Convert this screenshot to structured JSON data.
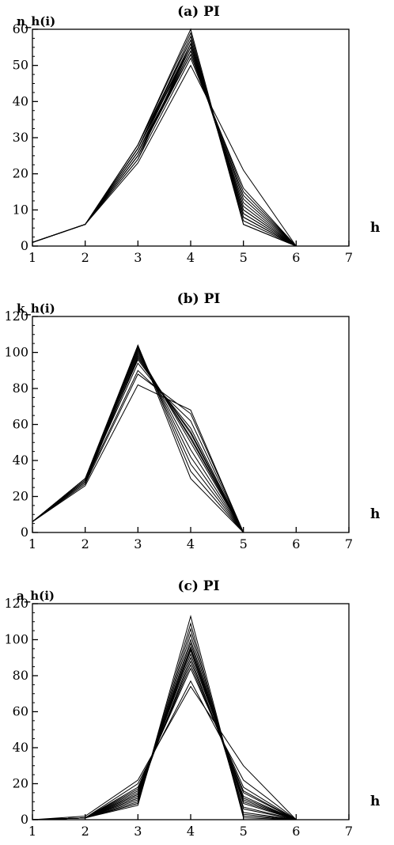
{
  "chart_data": [
    {
      "type": "line",
      "title": "(a)    PI",
      "ylabel": "n_h(i)",
      "xlabel": "h",
      "xlim": [
        1,
        7
      ],
      "ylim": [
        0,
        60
      ],
      "xticks": [
        1,
        2,
        3,
        4,
        5,
        6,
        7
      ],
      "yticks": [
        0,
        10,
        20,
        30,
        40,
        50,
        60
      ],
      "x": [
        1,
        2,
        3,
        4,
        5,
        6
      ],
      "series": [
        {
          "values": [
            1,
            6,
            23,
            50,
            21,
            0
          ]
        },
        {
          "values": [
            1,
            6,
            24,
            52,
            16,
            0
          ]
        },
        {
          "values": [
            1,
            6,
            25,
            53,
            14,
            0
          ]
        },
        {
          "values": [
            1,
            6,
            26,
            54,
            12,
            0
          ]
        },
        {
          "values": [
            1,
            6,
            25,
            55,
            11,
            0
          ]
        },
        {
          "values": [
            1,
            6,
            27,
            55,
            10,
            0
          ]
        },
        {
          "values": [
            1,
            6,
            26,
            56,
            9,
            0
          ]
        },
        {
          "values": [
            1,
            6,
            27,
            57,
            8,
            0
          ]
        },
        {
          "values": [
            1,
            6,
            28,
            57,
            8,
            0
          ]
        },
        {
          "values": [
            1,
            6,
            27,
            58,
            7,
            0
          ]
        },
        {
          "values": [
            1,
            6,
            28,
            59,
            6,
            0
          ]
        },
        {
          "values": [
            1,
            6,
            28,
            60,
            6,
            0
          ]
        },
        {
          "values": [
            1,
            6,
            25,
            54,
            13,
            0
          ]
        },
        {
          "values": [
            1,
            6,
            26,
            53,
            15,
            0
          ]
        },
        {
          "values": [
            1,
            6,
            24,
            56,
            10,
            0
          ]
        },
        {
          "values": [
            1,
            6,
            27,
            56,
            9,
            0
          ]
        }
      ]
    },
    {
      "type": "line",
      "title": "(b)    PI",
      "ylabel": "k_h(i)",
      "xlabel": "h",
      "xlim": [
        1,
        7
      ],
      "ylim": [
        0,
        120
      ],
      "xticks": [
        1,
        2,
        3,
        4,
        5,
        6,
        7
      ],
      "yticks": [
        0,
        20,
        40,
        60,
        80,
        100,
        120
      ],
      "x": [
        1,
        2,
        3,
        4,
        5
      ],
      "series": [
        {
          "values": [
            6,
            26,
            82,
            68,
            0
          ]
        },
        {
          "values": [
            6,
            27,
            88,
            66,
            0
          ]
        },
        {
          "values": [
            6,
            28,
            90,
            62,
            0
          ]
        },
        {
          "values": [
            6,
            29,
            94,
            58,
            0
          ]
        },
        {
          "values": [
            6,
            30,
            96,
            56,
            0
          ]
        },
        {
          "values": [
            6,
            27,
            98,
            53,
            0
          ]
        },
        {
          "values": [
            6,
            28,
            100,
            50,
            0
          ]
        },
        {
          "values": [
            6,
            29,
            101,
            46,
            0
          ]
        },
        {
          "values": [
            6,
            30,
            102,
            42,
            0
          ]
        },
        {
          "values": [
            6,
            28,
            103,
            38,
            0
          ]
        },
        {
          "values": [
            6,
            29,
            104,
            34,
            0
          ]
        },
        {
          "values": [
            6,
            30,
            104,
            30,
            0
          ]
        },
        {
          "values": [
            6,
            28,
            97,
            55,
            0
          ]
        },
        {
          "values": [
            6,
            29,
            99,
            52,
            0
          ]
        }
      ]
    },
    {
      "type": "line",
      "title": "(c)    PI",
      "ylabel": "a_h(i)",
      "xlabel": "h",
      "xlim": [
        1,
        7
      ],
      "ylim": [
        0,
        120
      ],
      "xticks": [
        1,
        2,
        3,
        4,
        5,
        6,
        7
      ],
      "yticks": [
        0,
        20,
        40,
        60,
        80,
        100,
        120
      ],
      "x": [
        1,
        2,
        3,
        4,
        5,
        6
      ],
      "series": [
        {
          "values": [
            0,
            2,
            22,
            74,
            30,
            0
          ]
        },
        {
          "values": [
            0,
            1,
            20,
            77,
            22,
            0
          ]
        },
        {
          "values": [
            0,
            1,
            18,
            84,
            18,
            0
          ]
        },
        {
          "values": [
            0,
            1,
            16,
            88,
            15,
            0
          ]
        },
        {
          "values": [
            0,
            1,
            15,
            92,
            13,
            0
          ]
        },
        {
          "values": [
            0,
            1,
            14,
            94,
            11,
            0
          ]
        },
        {
          "values": [
            0,
            1,
            13,
            96,
            9,
            0
          ]
        },
        {
          "values": [
            0,
            1,
            12,
            98,
            7,
            0
          ]
        },
        {
          "values": [
            0,
            1,
            11,
            100,
            6,
            0
          ]
        },
        {
          "values": [
            0,
            1,
            10,
            103,
            4,
            0
          ]
        },
        {
          "values": [
            0,
            1,
            9,
            106,
            3,
            0
          ]
        },
        {
          "values": [
            0,
            1,
            9,
            109,
            2,
            0
          ]
        },
        {
          "values": [
            0,
            1,
            8,
            113,
            1,
            0
          ]
        },
        {
          "values": [
            0,
            1,
            14,
            90,
            12,
            0
          ]
        },
        {
          "values": [
            0,
            1,
            17,
            86,
            16,
            0
          ]
        },
        {
          "values": [
            0,
            1,
            12,
            95,
            10,
            0
          ]
        }
      ]
    }
  ]
}
